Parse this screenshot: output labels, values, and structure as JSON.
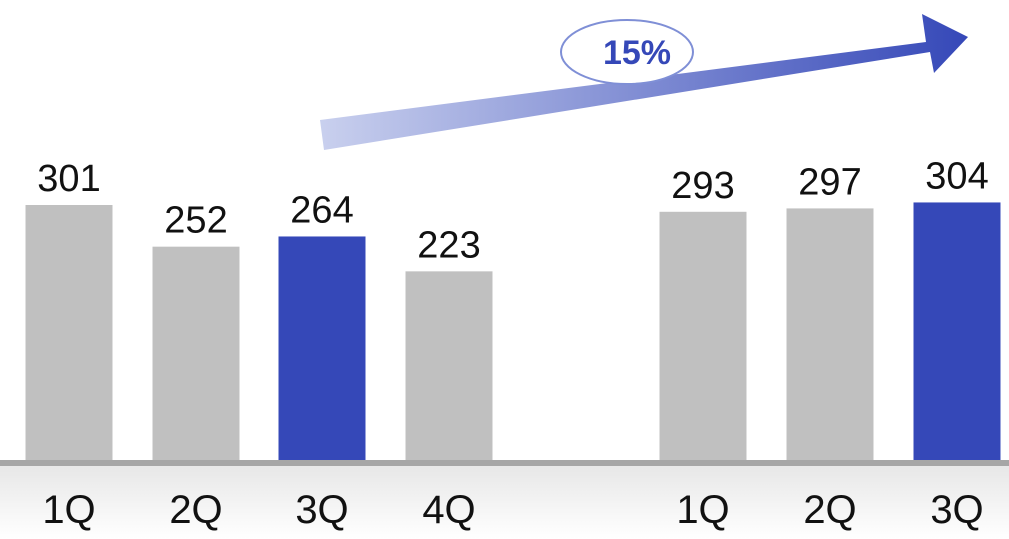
{
  "chart_data": {
    "type": "bar",
    "title": "",
    "xlabel": "",
    "ylabel": "",
    "ylim": [
      0,
      320
    ],
    "grid": false,
    "legend": "none",
    "groups": [
      {
        "categories": [
          "1Q",
          "2Q",
          "3Q",
          "4Q"
        ],
        "values": [
          301,
          252,
          264,
          223
        ],
        "value_labels": [
          "301",
          "252",
          "264",
          "223"
        ],
        "highlight_index": 2
      },
      {
        "categories": [
          "1Q",
          "2Q",
          "3Q"
        ],
        "values": [
          293,
          297,
          304
        ],
        "value_labels": [
          "293",
          "297",
          "304"
        ],
        "highlight_index": 2
      }
    ],
    "annotations": [
      {
        "type": "growth-arrow",
        "text": "15%"
      }
    ]
  },
  "colors": {
    "bar": "#c0c0c0",
    "highlight": "#3548b8",
    "axis": "#a6a6a6",
    "floor_shadow": "#eeeeee",
    "arrow_start": "#c9d0ee",
    "arrow_end": "#3548b8",
    "badge_border": "#7f8fd6"
  }
}
